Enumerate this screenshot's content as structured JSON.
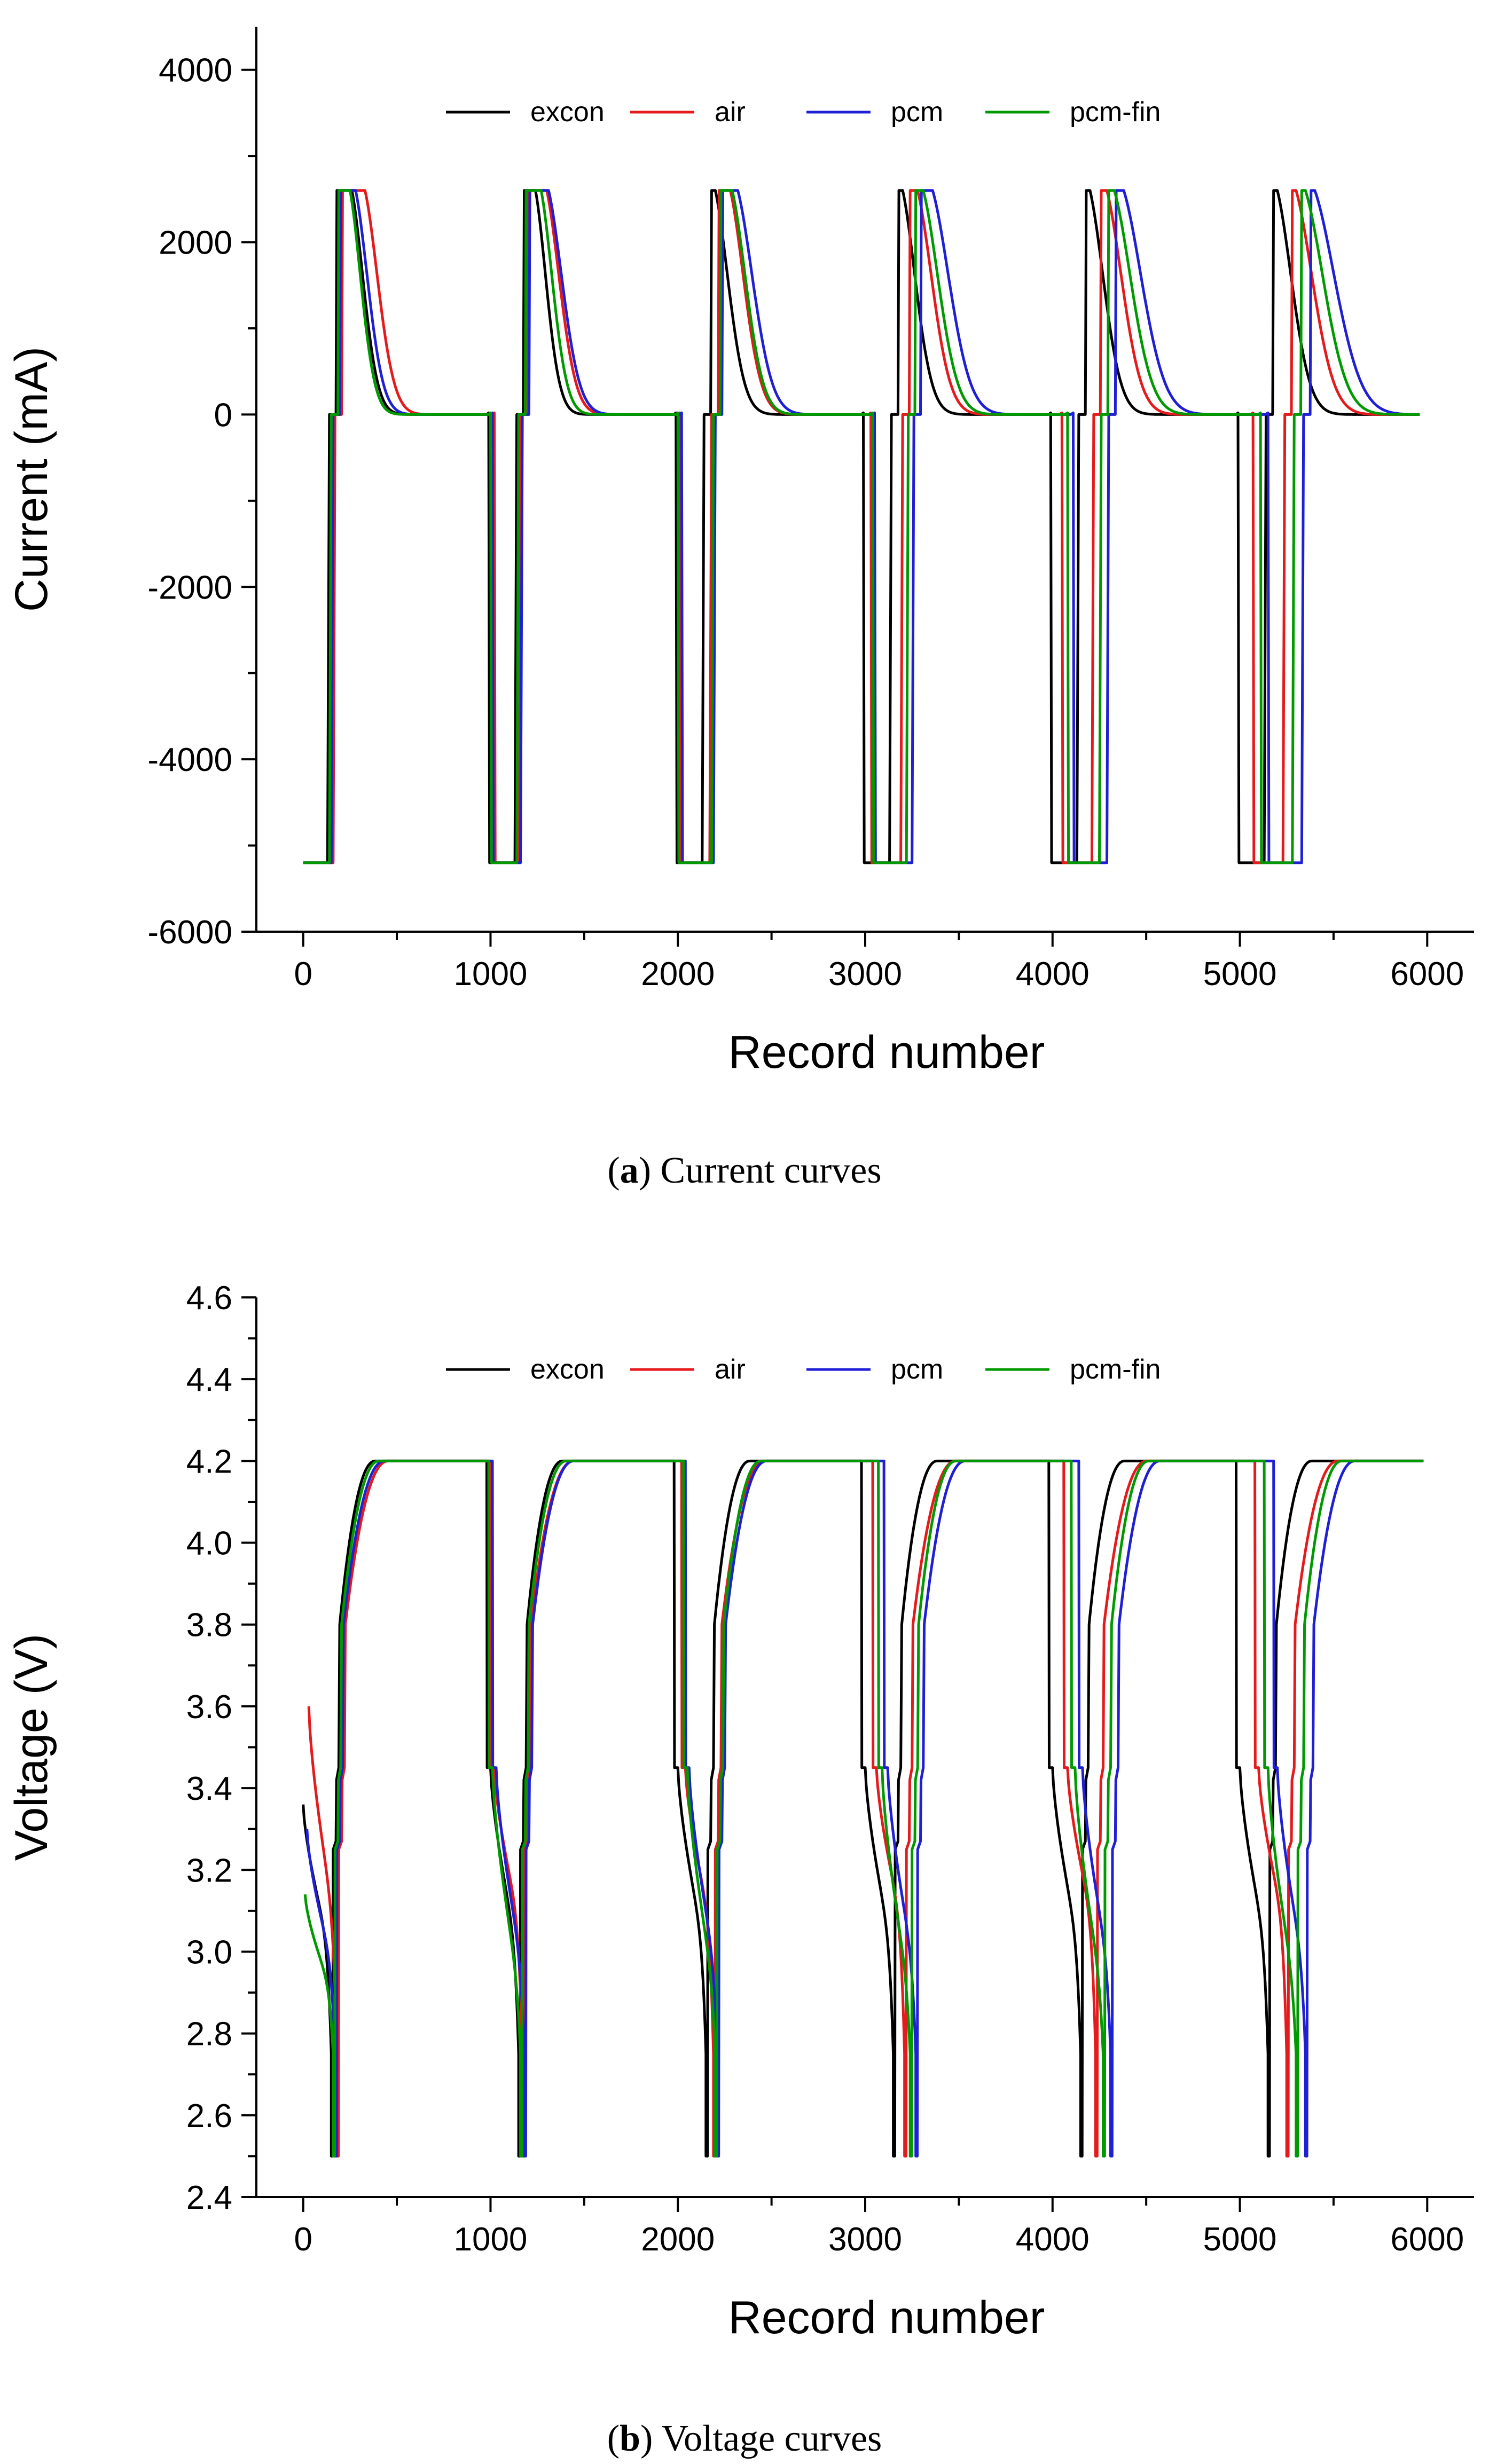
{
  "chart_data": [
    {
      "type": "line",
      "id": "current",
      "xlabel": "Record number",
      "ylabel": "Current (mA)",
      "xlim": [
        -250,
        6250
      ],
      "ylim": [
        -6000,
        4500
      ],
      "xticks": [
        0,
        1000,
        2000,
        3000,
        4000,
        5000,
        6000
      ],
      "xtick_labels": [
        "0",
        "1000",
        "2000",
        "3000",
        "4000",
        "5000",
        "6000"
      ],
      "yticks": [
        -6000,
        -4000,
        -2000,
        0,
        2000,
        4000
      ],
      "ytick_labels": [
        "-6000",
        "-4000",
        "-2000",
        "0",
        "2000",
        "4000"
      ],
      "caption": {
        "letter": "a",
        "text": " Current curves"
      },
      "legend": [
        "excon",
        "air",
        "pcm",
        "pcm-fin"
      ],
      "plateau_current": 2600,
      "discharge_current": -5200,
      "cycle_period": 1000,
      "series": [
        {
          "name": "excon",
          "color": "#000000",
          "x_shift": [
            0,
            0,
            0,
            0,
            0,
            0
          ],
          "taper_tau": [
            75,
            70,
            85,
            85,
            90,
            95
          ],
          "plateau_len": [
            80,
            60,
            20,
            20,
            20,
            20
          ]
        },
        {
          "name": "air",
          "color": "#e41a1c",
          "x_shift": [
            30,
            20,
            40,
            60,
            80,
            100
          ],
          "taper_tau": [
            85,
            85,
            90,
            95,
            100,
            110
          ],
          "plateau_len": [
            120,
            100,
            60,
            40,
            30,
            20
          ]
        },
        {
          "name": "pcm",
          "color": "#1f1fd6",
          "x_shift": [
            20,
            30,
            60,
            120,
            160,
            200
          ],
          "taper_tau": [
            80,
            90,
            100,
            110,
            120,
            135
          ],
          "plateau_len": [
            80,
            100,
            80,
            60,
            40,
            20
          ]
        },
        {
          "name": "pcm-fin",
          "color": "#009a00",
          "x_shift": [
            10,
            10,
            50,
            90,
            120,
            150
          ],
          "taper_tau": [
            72,
            75,
            90,
            100,
            110,
            120
          ],
          "plateau_len": [
            60,
            80,
            60,
            40,
            30,
            20
          ]
        }
      ]
    },
    {
      "type": "line",
      "id": "voltage",
      "xlabel": "Record number",
      "ylabel": "Voltage (V)",
      "xlim": [
        -250,
        6250
      ],
      "ylim": [
        2.4,
        4.6
      ],
      "xticks": [
        0,
        1000,
        2000,
        3000,
        4000,
        5000,
        6000
      ],
      "xtick_labels": [
        "0",
        "1000",
        "2000",
        "3000",
        "4000",
        "5000",
        "6000"
      ],
      "yticks": [
        2.4,
        2.6,
        2.8,
        3.0,
        3.2,
        3.4,
        3.6,
        3.8,
        4.0,
        4.2,
        4.4,
        4.6
      ],
      "ytick_labels": [
        "2.4",
        "2.6",
        "2.8",
        "3.0",
        "3.2",
        "3.4",
        "3.6",
        "3.8",
        "4.0",
        "4.2",
        "4.4",
        "4.6"
      ],
      "caption": {
        "letter": "b",
        "text": " Voltage curves"
      },
      "legend": [
        "excon",
        "air",
        "pcm",
        "pcm-fin"
      ],
      "cutoff_voltage": 2.5,
      "charge_voltage": 4.2,
      "series": [
        {
          "name": "excon",
          "color": "#000000",
          "x_shift": [
            0,
            0,
            0,
            0,
            0,
            0
          ],
          "start_v": 3.36,
          "knee_v": 3.0,
          "rise_len": 190
        },
        {
          "name": "air",
          "color": "#e41a1c",
          "x_shift": [
            30,
            20,
            40,
            60,
            80,
            100
          ],
          "start_v": 3.6,
          "knee_v": 3.05,
          "rise_len": 230
        },
        {
          "name": "pcm",
          "color": "#1f1fd6",
          "x_shift": [
            20,
            30,
            60,
            120,
            160,
            200
          ],
          "start_v": 3.3,
          "knee_v": 2.95,
          "rise_len": 220
        },
        {
          "name": "pcm-fin",
          "color": "#009a00",
          "x_shift": [
            10,
            10,
            50,
            90,
            120,
            150
          ],
          "start_v": 3.14,
          "knee_v": 2.9,
          "rise_len": 200
        }
      ]
    }
  ]
}
